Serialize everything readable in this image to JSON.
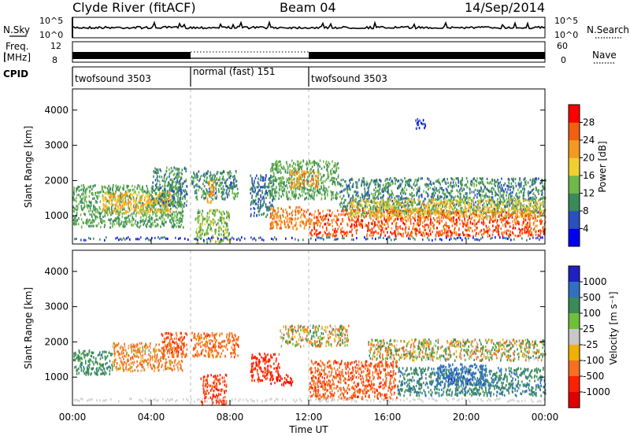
{
  "header": {
    "station": "Clyde River (fitACF)",
    "beam": "Beam 04",
    "date": "14/Sep/2014"
  },
  "top_panels": {
    "nsky_label": "N.Sky",
    "nsky_ticks": [
      "10^5",
      "10^0"
    ],
    "nsearch_label": "N.Search",
    "freq_label_1": "Freq.",
    "freq_label_2": "[MHz]",
    "freq_ticks": [
      "12",
      "8"
    ],
    "nave_label": "Nave",
    "nave_ticks": [
      "60",
      "0"
    ],
    "cpid_label": "CPID",
    "cpid_segments": [
      {
        "start_hour": 0,
        "end_hour": 6,
        "label": "twofsound 3503"
      },
      {
        "start_hour": 6,
        "end_hour": 12,
        "label": "normal (fast) 151"
      },
      {
        "start_hour": 12,
        "end_hour": 24,
        "label": "twofsound 3503"
      }
    ]
  },
  "chart_data": [
    {
      "type": "heatmap",
      "title": "",
      "quantity": "Power",
      "xlabel": "",
      "ylabel": "Slant Range [km]",
      "xlim_hours": [
        0,
        24
      ],
      "ylim": [
        200,
        4600
      ],
      "yticks": [
        1000,
        2000,
        3000,
        4000
      ],
      "colorbar_label": "Power [dB]",
      "colorbar_ticks": [
        "4",
        "8",
        "12",
        "16",
        "20",
        "24",
        "28"
      ],
      "colorbar_colors": [
        "#0000f0",
        "#2a4fbf",
        "#3a8a5a",
        "#6fb84a",
        "#f0d030",
        "#f59a20",
        "#f06010",
        "#ff0000"
      ],
      "regions": [
        {
          "x0": 0.0,
          "x1": 5.6,
          "y0": 700,
          "y1": 1900,
          "value": 12
        },
        {
          "x0": 1.5,
          "x1": 5.0,
          "y0": 1100,
          "y1": 1700,
          "value": 20
        },
        {
          "x0": 4.0,
          "x1": 5.8,
          "y0": 1300,
          "y1": 2400,
          "value": 10
        },
        {
          "x0": 6.0,
          "x1": 8.4,
          "y0": 1500,
          "y1": 2300,
          "value": 10
        },
        {
          "x0": 6.8,
          "x1": 7.2,
          "y0": 1400,
          "y1": 2100,
          "value": 22
        },
        {
          "x0": 6.2,
          "x1": 8.0,
          "y0": 250,
          "y1": 1200,
          "value": 14
        },
        {
          "x0": 9.0,
          "x1": 10.2,
          "y0": 1000,
          "y1": 2200,
          "value": 8
        },
        {
          "x0": 10.0,
          "x1": 13.5,
          "y0": 1500,
          "y1": 2600,
          "value": 12
        },
        {
          "x0": 11.0,
          "x1": 12.5,
          "y0": 1800,
          "y1": 2300,
          "value": 22
        },
        {
          "x0": 13.5,
          "x1": 24.0,
          "y0": 1100,
          "y1": 2100,
          "value": 10
        },
        {
          "x0": 10.0,
          "x1": 12.0,
          "y0": 650,
          "y1": 1300,
          "value": 24
        },
        {
          "x0": 12.0,
          "x1": 24.0,
          "y0": 450,
          "y1": 1200,
          "value": 26
        },
        {
          "x0": 14.0,
          "x1": 24.0,
          "y0": 1000,
          "y1": 1500,
          "value": 18
        },
        {
          "x0": 17.4,
          "x1": 17.9,
          "y0": 3500,
          "y1": 3800,
          "value": 4
        }
      ]
    },
    {
      "type": "heatmap",
      "title": "",
      "quantity": "Velocity",
      "xlabel": "Time UT",
      "ylabel": "Slant Range [km]",
      "xlim_hours": [
        0,
        24
      ],
      "ylim": [
        200,
        4600
      ],
      "yticks": [
        1000,
        2000,
        3000,
        4000
      ],
      "xtick_labels": [
        "00:00",
        "04:00",
        "08:00",
        "12:00",
        "16:00",
        "20:00",
        "00:00"
      ],
      "colorbar_label": "Velocity [m s⁻¹]",
      "colorbar_ticks": [
        "1000",
        "500",
        "100",
        "25",
        "-25",
        "-100",
        "-500",
        "-1000"
      ],
      "colorbar_colors": [
        "#2020c0",
        "#3070c0",
        "#3a8a5a",
        "#6fbf3a",
        "#c8c8c8",
        "#f0b000",
        "#f57020",
        "#ff2000",
        "#e00000"
      ],
      "regions": [
        {
          "x0": 0.0,
          "x1": 2.0,
          "y0": 1100,
          "y1": 1800,
          "value": 300
        },
        {
          "x0": 2.0,
          "x1": 5.6,
          "y0": 1200,
          "y1": 2000,
          "value": -200
        },
        {
          "x0": 4.5,
          "x1": 5.8,
          "y0": 1600,
          "y1": 2300,
          "value": -400
        },
        {
          "x0": 6.0,
          "x1": 8.4,
          "y0": 1600,
          "y1": 2300,
          "value": -300
        },
        {
          "x0": 6.5,
          "x1": 7.8,
          "y0": 250,
          "y1": 1100,
          "value": -600
        },
        {
          "x0": 9.0,
          "x1": 10.5,
          "y0": 900,
          "y1": 1700,
          "value": -700
        },
        {
          "x0": 10.5,
          "x1": 14.0,
          "y0": 1900,
          "y1": 2500,
          "value": 0
        },
        {
          "x0": 12.0,
          "x1": 16.5,
          "y0": 400,
          "y1": 1500,
          "value": -400
        },
        {
          "x0": 15.0,
          "x1": 24.0,
          "y0": 1500,
          "y1": 2100,
          "value": 0
        },
        {
          "x0": 16.5,
          "x1": 24.0,
          "y0": 500,
          "y1": 1300,
          "value": 400
        },
        {
          "x0": 18.5,
          "x1": 21.0,
          "y0": 800,
          "y1": 1400,
          "value": 800
        },
        {
          "x0": 10.0,
          "x1": 11.2,
          "y0": 800,
          "y1": 1100,
          "value": -900
        }
      ]
    }
  ]
}
